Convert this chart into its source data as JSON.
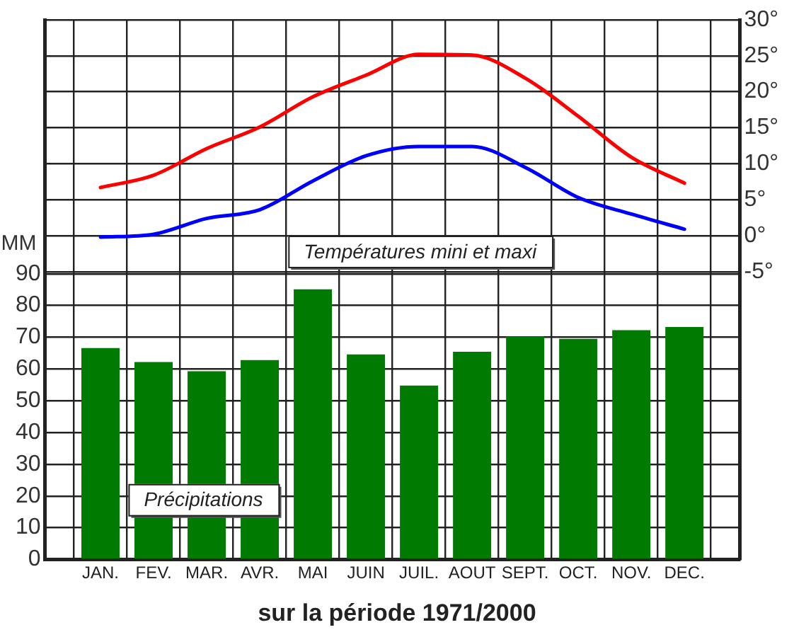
{
  "chart_data": {
    "type": "bar",
    "title": "sur la période 1971/2000",
    "ylabel": "MM",
    "categories": [
      "JAN.",
      "FEV.",
      "MAR.",
      "AVR.",
      "MAI",
      "JUIN",
      "JUIL.",
      "AOUT",
      "SEPT.",
      "OCT.",
      "NOV.",
      "DEC."
    ],
    "series": [
      {
        "color": "#007a00",
        "values": [
          66.6,
          62.2,
          59.3,
          62.8,
          85.1,
          64.6,
          54.8,
          65.4,
          70.3,
          69.5,
          72.2,
          73.2
        ]
      },
      {
        "type": "line",
        "axis": "y2",
        "color": "#ff0000",
        "values": [
          6.7,
          8.4,
          12.1,
          15.1,
          19.3,
          22.3,
          25.2,
          25.1,
          21.9,
          16.6,
          10.9,
          7.3
        ]
      },
      {
        "type": "line",
        "axis": "y2",
        "color": "#0000ff",
        "values": [
          -0.2,
          0.2,
          2.4,
          3.6,
          7.6,
          11.1,
          12.4,
          12.4,
          9.5,
          5.3,
          3.0,
          0.9
        ]
      }
    ],
    "ylim": [
      0,
      170
    ],
    "yticks": [
      0,
      10,
      20,
      30,
      40,
      50,
      60,
      70,
      80,
      90
    ],
    "y2lim": [
      -45,
      30
    ],
    "y2ticks": [
      {
        "value": -5,
        "label": "-5°"
      },
      {
        "value": 0,
        "label": "0°"
      },
      {
        "value": 5,
        "label": "5°"
      },
      {
        "value": 10,
        "label": "10°"
      },
      {
        "value": 15,
        "label": "15°"
      },
      {
        "value": 20,
        "label": "20°"
      },
      {
        "value": 25,
        "label": "25°"
      },
      {
        "value": 30,
        "label": "30°"
      }
    ],
    "annotations": [
      "Températures mini et maxi",
      "Précipitations"
    ],
    "grid": true,
    "legend": false,
    "marker": "none",
    "line_style": "solid"
  }
}
